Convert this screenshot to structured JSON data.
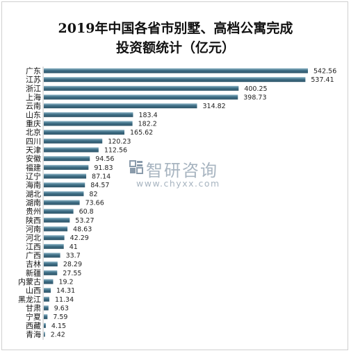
{
  "chart_data": {
    "type": "bar",
    "orientation": "horizontal",
    "title": "2019年中国各省市别墅、高档公寓完成\n投资额统计（亿元）",
    "categories": [
      "广东",
      "江苏",
      "浙江",
      "上海",
      "云南",
      "山东",
      "重庆",
      "北京",
      "四川",
      "天津",
      "安徽",
      "福建",
      "辽宁",
      "海南",
      "湖北",
      "湖南",
      "贵州",
      "陕西",
      "河南",
      "河北",
      "江西",
      "广西",
      "吉林",
      "新疆",
      "内蒙古",
      "山西",
      "黑龙江",
      "甘肃",
      "宁夏",
      "西藏",
      "青海"
    ],
    "values": [
      542.56,
      537.41,
      400.25,
      398.73,
      314.82,
      183.4,
      182.2,
      165.62,
      120.23,
      112.56,
      94.56,
      91.83,
      87.14,
      84.57,
      82,
      73.66,
      60.8,
      53.27,
      48.63,
      42.29,
      41,
      33.7,
      28.29,
      27.55,
      19.2,
      14.31,
      11.34,
      9.63,
      7.59,
      4.15,
      2.42
    ],
    "value_labels": [
      "542.56",
      "537.41",
      "400.25",
      "398.73",
      "314.82",
      "183.4",
      "182.2",
      "165.62",
      "120.23",
      "112.56",
      "94.56",
      "91.83",
      "87.14",
      "84.57",
      "82",
      "73.66",
      "60.8",
      "53.27",
      "48.63",
      "42.29",
      "41",
      "33.7",
      "28.29",
      "27.55",
      "19.2",
      "14.31",
      "11.34",
      "9.63",
      "7.59",
      "4.15",
      "2.42"
    ],
    "xlabel": "",
    "ylabel": "",
    "xlim": [
      0,
      600
    ],
    "grid": false,
    "legend": "none",
    "bar_color": "#3f6f86",
    "bar_highlight": "#8fb6c8"
  },
  "watermark": {
    "brand": "智研咨询",
    "url": "www.chyxx.com"
  }
}
